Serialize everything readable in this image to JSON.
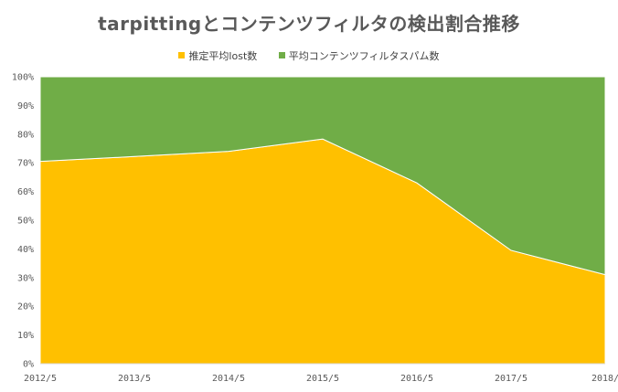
{
  "chart_data": {
    "type": "area",
    "stacked": "percent",
    "title": "tarpittingとコンテンツフィルタの検出割合推移",
    "categories": [
      "2012/5",
      "2013/5",
      "2014/5",
      "2015/5",
      "2016/5",
      "2017/5",
      "2018/"
    ],
    "series": [
      {
        "name": "推定平均lost数",
        "color": "#FFC000",
        "values": [
          70.5,
          72.2,
          74.0,
          78.3,
          63.0,
          39.5,
          31.0
        ]
      },
      {
        "name": "平均コンテンツフィルタスパム数",
        "color": "#70AD47",
        "values": [
          29.5,
          27.8,
          26.0,
          21.7,
          37.0,
          60.5,
          69.0
        ]
      }
    ],
    "ylim": [
      0,
      100
    ],
    "yticks": [
      "0%",
      "10%",
      "20%",
      "30%",
      "40%",
      "50%",
      "60%",
      "70%",
      "80%",
      "90%",
      "100%"
    ],
    "grid": false,
    "legend_position": "top"
  }
}
